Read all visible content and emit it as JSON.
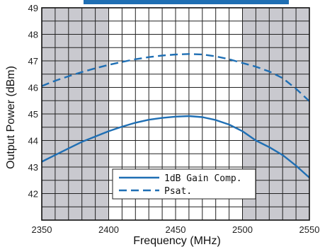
{
  "chart_data": {
    "type": "line",
    "xlabel": "Frequency (MHz)",
    "ylabel": "Output Power (dBm)",
    "xlim": [
      2350,
      2550
    ],
    "ylim": [
      41,
      49
    ],
    "x_ticks": [
      2350,
      2400,
      2450,
      2500,
      2550
    ],
    "y_ticks": [
      42,
      43,
      44,
      45,
      46,
      47,
      48,
      49
    ],
    "shaded_x_ranges": [
      [
        2350,
        2400
      ],
      [
        2500,
        2550
      ]
    ],
    "grid": true,
    "legend_position": "lower-center",
    "series": [
      {
        "name": "1dB Gain Comp.",
        "style": "solid",
        "color": "#1f6fb4",
        "x": [
          2350,
          2360,
          2370,
          2380,
          2390,
          2400,
          2410,
          2420,
          2430,
          2440,
          2450,
          2460,
          2470,
          2480,
          2490,
          2500,
          2510,
          2520,
          2530,
          2540,
          2550
        ],
        "y": [
          43.2,
          43.45,
          43.7,
          43.95,
          44.15,
          44.35,
          44.52,
          44.67,
          44.78,
          44.85,
          44.9,
          44.92,
          44.88,
          44.77,
          44.6,
          44.35,
          44.0,
          43.75,
          43.45,
          43.05,
          42.6
        ]
      },
      {
        "name": "Psat.",
        "style": "dashed",
        "color": "#1f6fb4",
        "x": [
          2350,
          2360,
          2370,
          2380,
          2390,
          2400,
          2410,
          2420,
          2430,
          2440,
          2450,
          2460,
          2470,
          2480,
          2490,
          2500,
          2510,
          2520,
          2530,
          2540,
          2550
        ],
        "y": [
          46.05,
          46.25,
          46.42,
          46.58,
          46.72,
          46.85,
          46.96,
          47.06,
          47.14,
          47.2,
          47.24,
          47.26,
          47.24,
          47.17,
          47.06,
          46.92,
          46.78,
          46.6,
          46.35,
          45.95,
          45.48
        ]
      }
    ]
  },
  "colors": {
    "shade": "#c9c9cf",
    "grid": "#222222",
    "line": "#1f6fb4",
    "top_band": "#1f6fb4"
  }
}
